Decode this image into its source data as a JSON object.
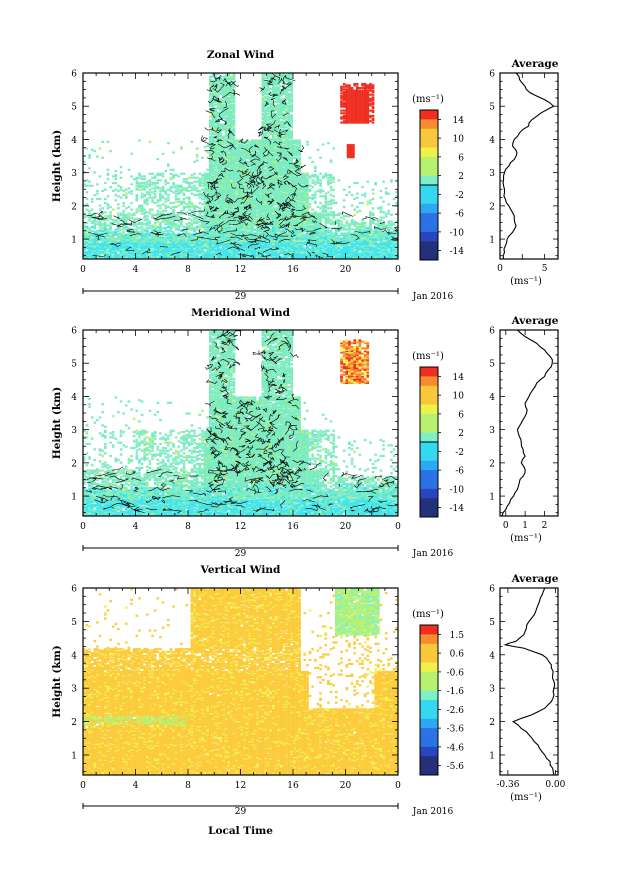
{
  "colors": {
    "zonal_palette": [
      "#24307a",
      "#2846c0",
      "#2a72e6",
      "#2ea8f0",
      "#36d8f0",
      "#7cf0c8",
      "#b8f070",
      "#f0f04a",
      "#f8c83a",
      "#f88a30",
      "#ef2e20"
    ],
    "vertical_palette": [
      "#24307a",
      "#2846c0",
      "#2a72e6",
      "#2ea8f0",
      "#36d8f0",
      "#7cf0c8",
      "#b8f070",
      "#f0f04a",
      "#f8c83a",
      "#f88a30",
      "#ef2e20"
    ],
    "background_fill_main": "#7cecc0",
    "background_fill_low": "#3ee4ee",
    "vertical_fill": "#fbcb3c",
    "hot_fill": "#ef2e20"
  },
  "chart_data": [
    {
      "type": "heatmap",
      "title": "Zonal Wind",
      "ylabel": "Height (km)",
      "xlim": [
        0,
        24
      ],
      "ylim": [
        0.4,
        6
      ],
      "x_ticks": [
        "0",
        "4",
        "8",
        "12",
        "16",
        "20",
        "0"
      ],
      "y_ticks": [
        "1",
        "2",
        "3",
        "4",
        "5",
        "6"
      ],
      "date_label": "29",
      "month_label": "Jan 2016",
      "colorbar": {
        "unit": "(ms⁻¹)",
        "ticks": [
          "14",
          "10",
          "6",
          "2",
          "-2",
          "-6",
          "-10",
          "-14"
        ]
      },
      "profile": {
        "title": "Average",
        "xlabel": "(ms⁻¹)",
        "x_ticks": [
          "0",
          "",
          "5"
        ],
        "xlim": [
          0,
          6.5
        ],
        "height": [
          0.4,
          0.6,
          0.8,
          1.0,
          1.2,
          1.4,
          1.6,
          1.8,
          2.0,
          2.2,
          2.4,
          2.6,
          2.8,
          3.0,
          3.2,
          3.4,
          3.6,
          3.8,
          4.0,
          4.2,
          4.4,
          4.6,
          4.8,
          5.0,
          5.2,
          5.4,
          5.6,
          5.8,
          6.0
        ],
        "values": [
          0.4,
          0.5,
          0.6,
          0.8,
          1.4,
          1.8,
          1.6,
          1.4,
          1.0,
          0.6,
          0.5,
          0.4,
          0.4,
          0.5,
          1.0,
          1.6,
          1.9,
          1.4,
          1.6,
          2.2,
          3.2,
          3.6,
          4.6,
          6.0,
          5.0,
          3.4,
          2.8,
          2.2,
          1.8
        ]
      }
    },
    {
      "type": "heatmap",
      "title": "Meridional Wind",
      "ylabel": "Height (km)",
      "xlim": [
        0,
        24
      ],
      "ylim": [
        0.4,
        6
      ],
      "x_ticks": [
        "0",
        "4",
        "8",
        "12",
        "16",
        "20",
        "0"
      ],
      "y_ticks": [
        "1",
        "2",
        "3",
        "4",
        "5",
        "6"
      ],
      "date_label": "29",
      "month_label": "Jan 2016",
      "colorbar": {
        "unit": "(ms⁻¹)",
        "ticks": [
          "14",
          "10",
          "6",
          "2",
          "-2",
          "-6",
          "-10",
          "-14"
        ]
      },
      "profile": {
        "title": "Average",
        "xlabel": "(ms⁻¹)",
        "x_ticks": [
          "0",
          "1",
          "2"
        ],
        "xlim": [
          -0.3,
          2.7
        ],
        "height": [
          0.4,
          0.6,
          0.8,
          1.0,
          1.2,
          1.4,
          1.6,
          1.8,
          2.0,
          2.2,
          2.4,
          2.6,
          2.8,
          3.0,
          3.2,
          3.4,
          3.6,
          3.8,
          4.0,
          4.2,
          4.4,
          4.6,
          4.8,
          5.0,
          5.2,
          5.4,
          5.6,
          5.8,
          6.0
        ],
        "values": [
          -0.2,
          0.0,
          0.2,
          0.4,
          0.6,
          0.7,
          0.9,
          1.0,
          0.8,
          1.0,
          0.9,
          0.8,
          0.7,
          0.6,
          0.8,
          1.0,
          1.1,
          1.0,
          1.2,
          1.4,
          1.6,
          2.0,
          2.2,
          2.4,
          2.3,
          2.0,
          1.6,
          1.0,
          0.6
        ]
      }
    },
    {
      "type": "heatmap",
      "title": "Vertical Wind",
      "ylabel": "Height (km)",
      "xlabel": "Local Time",
      "xlim": [
        0,
        24
      ],
      "ylim": [
        0.4,
        6
      ],
      "x_ticks": [
        "0",
        "4",
        "8",
        "12",
        "16",
        "20",
        "0"
      ],
      "y_ticks": [
        "1",
        "2",
        "3",
        "4",
        "5",
        "6"
      ],
      "date_label": "29",
      "month_label": "Jan 2016",
      "colorbar": {
        "unit": "(ms⁻¹)",
        "ticks": [
          "1.5",
          "0.6",
          "-0.6",
          "-1.6",
          "-2.6",
          "-3.6",
          "-4.6",
          "-5.6"
        ]
      },
      "profile": {
        "title": "Average",
        "xlabel": "(ms⁻¹)",
        "x_ticks": [
          "-0.36",
          "0.00"
        ],
        "xlim": [
          -0.42,
          0.02
        ],
        "height": [
          0.4,
          0.6,
          0.8,
          1.0,
          1.2,
          1.4,
          1.6,
          1.8,
          2.0,
          2.2,
          2.4,
          2.6,
          2.8,
          3.0,
          3.2,
          3.4,
          3.6,
          3.8,
          4.0,
          4.2,
          4.3,
          4.4,
          4.6,
          4.8,
          5.0,
          5.2,
          5.4,
          5.6,
          5.8,
          6.0
        ],
        "values": [
          -0.01,
          -0.02,
          -0.04,
          -0.08,
          -0.12,
          -0.16,
          -0.2,
          -0.26,
          -0.32,
          -0.18,
          -0.08,
          -0.03,
          -0.01,
          -0.01,
          -0.01,
          -0.02,
          -0.03,
          -0.05,
          -0.1,
          -0.24,
          -0.38,
          -0.3,
          -0.24,
          -0.22,
          -0.2,
          -0.16,
          -0.14,
          -0.12,
          -0.1,
          -0.08
        ]
      }
    }
  ]
}
